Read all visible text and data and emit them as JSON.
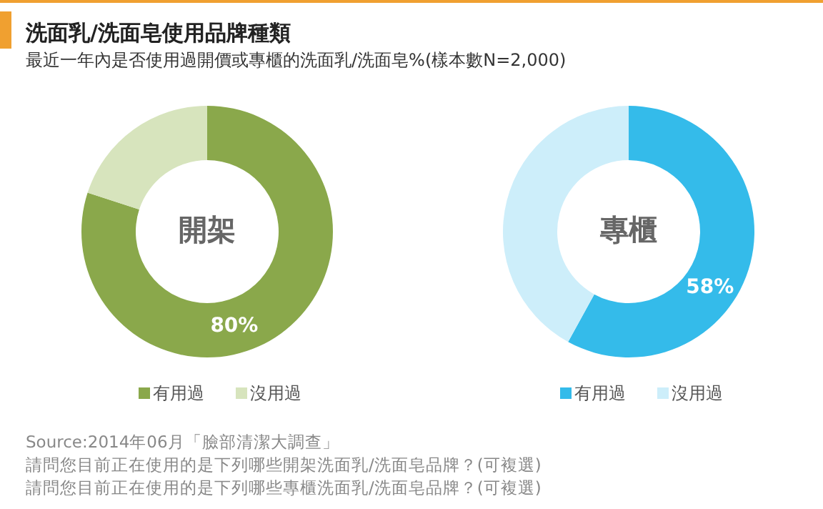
{
  "chart_data": [
    {
      "type": "donut",
      "title": "洗面乳/洗面皂使用品牌種類",
      "subtitle": "最近一年內是否使用過開價或專櫃的洗面乳/洗面皂%(樣本數N=2,000)",
      "categories": [
        "有用過",
        "沒用過"
      ],
      "values": [
        80,
        20
      ],
      "colors": [
        "#8aa84b",
        "#d7e4bd"
      ],
      "value_labels": [
        "80%",
        null
      ],
      "legend": "bottom",
      "annotations": [
        "開架"
      ]
    },
    {
      "type": "donut",
      "categories": [
        "有用過",
        "沒用過"
      ],
      "values": [
        58,
        42
      ],
      "colors": [
        "#34bbea",
        "#cdeefa"
      ],
      "value_labels": [
        "58%",
        null
      ],
      "legend": "bottom",
      "annotations": [
        "專櫃",
        "Source:2014年06月「臉部清潔大調查」",
        "請問您目前正在使用的是下列哪些開架洗面乳/洗面皂品牌？(可複選)",
        "請問您目前正在使用的是下列哪些專櫃洗面乳/洗面皂品牌？(可複選)"
      ]
    }
  ]
}
